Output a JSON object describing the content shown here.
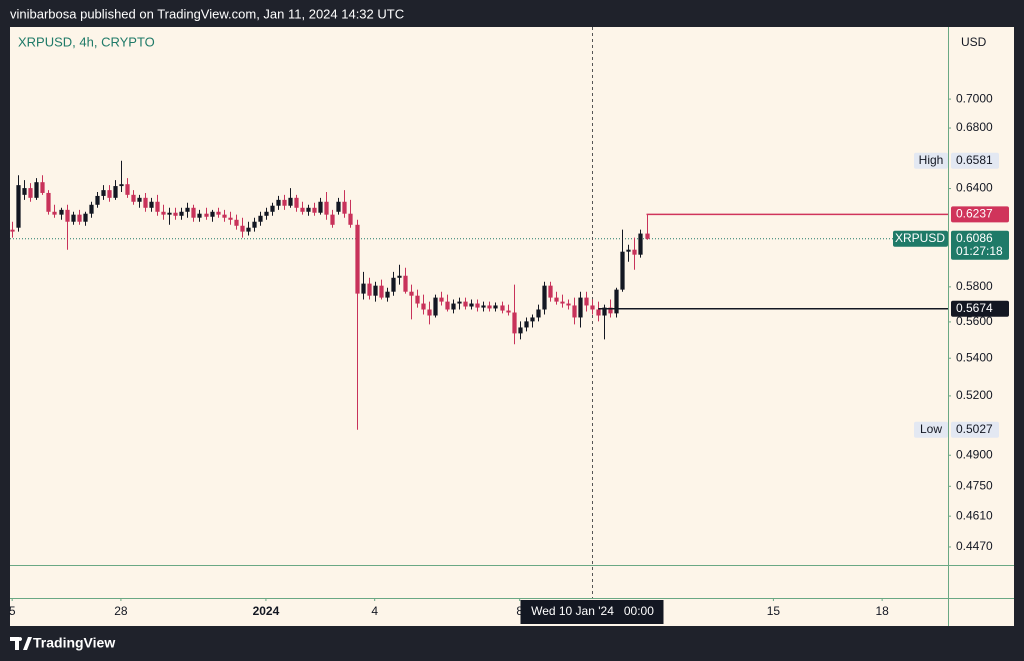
{
  "header": "vinibarbosa published on TradingView.com, Jan 11, 2024 14:32 UTC",
  "footer": "TradingView",
  "chart_data": {
    "type": "candlestick",
    "title": "XRPUSD, 4h, CRYPTO",
    "currency": "USD",
    "up_color": "#131722",
    "down_color": "#c8325a",
    "log_scale": true,
    "grid": false,
    "open": [
      0.6142,
      0.6154,
      0.636,
      0.6403,
      0.6341,
      0.6441,
      0.6372,
      0.6253,
      0.6235,
      0.6265,
      0.6191,
      0.6235,
      0.6191,
      0.6241,
      0.6297,
      0.6353,
      0.639,
      0.6341,
      0.6416,
      0.6428,
      0.636,
      0.6316,
      0.6341,
      0.6278,
      0.6316,
      0.6253,
      0.6235,
      0.6247,
      0.6228,
      0.6253,
      0.6278,
      0.6216,
      0.6241,
      0.6222,
      0.6253,
      0.6235,
      0.6216,
      0.6203,
      0.6166,
      0.613,
      0.6154,
      0.6191,
      0.6228,
      0.6253,
      0.6291,
      0.6328,
      0.6291,
      0.6341,
      0.6278,
      0.6253,
      0.6278,
      0.6247,
      0.6316,
      0.6235,
      0.6253,
      0.6316,
      0.6241,
      0.6172,
      0.5761,
      0.5819,
      0.5749,
      0.5807,
      0.5738,
      0.5772,
      0.5853,
      0.5865,
      0.5772,
      0.5749,
      0.5704,
      0.567,
      0.5636,
      0.5738,
      0.5715,
      0.567,
      0.5704,
      0.5715,
      0.5687,
      0.5704,
      0.5681,
      0.5693,
      0.5676,
      0.5693,
      0.5664,
      0.5653,
      0.5536,
      0.5569,
      0.5603,
      0.5625,
      0.567,
      0.5807,
      0.5738,
      0.5715,
      0.5704,
      0.5693,
      0.5625,
      0.5738,
      0.5693,
      0.567,
      0.5636,
      0.5681,
      0.5648,
      0.5784,
      0.6008,
      0.602,
      0.599,
      0.6118
    ],
    "high": [
      0.6191,
      0.6486,
      0.6454,
      0.6435,
      0.6467,
      0.6486,
      0.639,
      0.6297,
      0.6278,
      0.6297,
      0.6253,
      0.6265,
      0.6253,
      0.6316,
      0.6378,
      0.6422,
      0.6422,
      0.6454,
      0.6581,
      0.6467,
      0.639,
      0.636,
      0.6372,
      0.6341,
      0.636,
      0.6297,
      0.6278,
      0.6278,
      0.6278,
      0.631,
      0.6297,
      0.6265,
      0.6278,
      0.6265,
      0.6278,
      0.6265,
      0.6253,
      0.6235,
      0.6216,
      0.6191,
      0.6216,
      0.6253,
      0.6278,
      0.631,
      0.6353,
      0.636,
      0.6403,
      0.636,
      0.6316,
      0.6297,
      0.631,
      0.6341,
      0.6378,
      0.6265,
      0.6341,
      0.639,
      0.6328,
      0.6203,
      0.5888,
      0.5853,
      0.583,
      0.5842,
      0.5795,
      0.5888,
      0.593,
      0.5912,
      0.5813,
      0.5784,
      0.5755,
      0.5715,
      0.5755,
      0.5772,
      0.5755,
      0.5727,
      0.5738,
      0.5738,
      0.5727,
      0.5727,
      0.5715,
      0.5715,
      0.571,
      0.5715,
      0.5698,
      0.5813,
      0.5603,
      0.5625,
      0.5642,
      0.5698,
      0.583,
      0.583,
      0.5772,
      0.5755,
      0.5727,
      0.5738,
      0.5772,
      0.5772,
      0.5727,
      0.5715,
      0.5698,
      0.5727,
      0.5795,
      0.6142,
      0.605,
      0.6093,
      0.6142,
      0.6237
    ],
    "low": [
      0.6093,
      0.613,
      0.6328,
      0.6316,
      0.6328,
      0.636,
      0.6235,
      0.6216,
      0.6203,
      0.602,
      0.6172,
      0.6172,
      0.6166,
      0.6216,
      0.6278,
      0.6328,
      0.6316,
      0.6328,
      0.6378,
      0.6341,
      0.6297,
      0.6278,
      0.6253,
      0.6253,
      0.6228,
      0.6203,
      0.6172,
      0.6203,
      0.6203,
      0.6216,
      0.6191,
      0.6191,
      0.6203,
      0.6191,
      0.6216,
      0.6191,
      0.6172,
      0.6142,
      0.6093,
      0.6106,
      0.613,
      0.6166,
      0.6203,
      0.6228,
      0.6265,
      0.6265,
      0.6278,
      0.6253,
      0.6235,
      0.6228,
      0.6228,
      0.6235,
      0.6203,
      0.6154,
      0.6235,
      0.6216,
      0.6154,
      0.5027,
      0.5727,
      0.5727,
      0.5715,
      0.5727,
      0.5715,
      0.5749,
      0.5813,
      0.5761,
      0.5614,
      0.5681,
      0.5642,
      0.5586,
      0.5625,
      0.5693,
      0.5659,
      0.5648,
      0.567,
      0.567,
      0.567,
      0.5659,
      0.5659,
      0.5659,
      0.5659,
      0.5648,
      0.5636,
      0.5476,
      0.5503,
      0.5547,
      0.5569,
      0.5603,
      0.5642,
      0.5715,
      0.5698,
      0.5681,
      0.567,
      0.5586,
      0.5569,
      0.5659,
      0.5642,
      0.5603,
      0.5503,
      0.5625,
      0.5625,
      0.5772,
      0.5948,
      0.59,
      0.5972,
      0.608
    ],
    "close": [
      0.613,
      0.6422,
      0.6403,
      0.6341,
      0.6441,
      0.6372,
      0.6253,
      0.6235,
      0.6265,
      0.6191,
      0.6235,
      0.6191,
      0.6241,
      0.6297,
      0.6353,
      0.639,
      0.6341,
      0.6416,
      0.6428,
      0.636,
      0.6316,
      0.6341,
      0.6278,
      0.6316,
      0.6253,
      0.6235,
      0.6247,
      0.6228,
      0.6253,
      0.6278,
      0.6216,
      0.6241,
      0.6222,
      0.6253,
      0.6235,
      0.6216,
      0.6203,
      0.6166,
      0.613,
      0.6154,
      0.6191,
      0.6228,
      0.6253,
      0.6291,
      0.6328,
      0.6291,
      0.6341,
      0.6278,
      0.6253,
      0.6278,
      0.6247,
      0.6316,
      0.6235,
      0.6172,
      0.6316,
      0.6241,
      0.6172,
      0.5761,
      0.5819,
      0.5749,
      0.5807,
      0.5738,
      0.5772,
      0.5853,
      0.5865,
      0.5772,
      0.5749,
      0.5704,
      0.567,
      0.5636,
      0.5738,
      0.5715,
      0.567,
      0.5704,
      0.5715,
      0.5687,
      0.5704,
      0.5681,
      0.5693,
      0.5676,
      0.5693,
      0.5664,
      0.5653,
      0.5536,
      0.5569,
      0.5603,
      0.5625,
      0.567,
      0.5807,
      0.5738,
      0.5715,
      0.5704,
      0.5693,
      0.5625,
      0.5738,
      0.5693,
      0.567,
      0.5636,
      0.5681,
      0.5648,
      0.5784,
      0.6008,
      0.602,
      0.599,
      0.6118,
      0.6086
    ],
    "xlim": [
      -0.36,
      154.9
    ],
    "xticks": [
      {
        "value": 0,
        "label": "5"
      },
      {
        "value": 18,
        "label": "28"
      },
      {
        "value": 42,
        "label": "2024"
      },
      {
        "value": 60,
        "label": "4"
      },
      {
        "value": 84,
        "label": "8"
      },
      {
        "value": 126,
        "label": "15"
      },
      {
        "value": 144,
        "label": "18"
      }
    ],
    "ylim": [
      0.439,
      0.7524
    ],
    "yticks": [
      {
        "value": 0.7,
        "label": "0.7000"
      },
      {
        "value": 0.68,
        "label": "0.6800"
      },
      {
        "value": 0.64,
        "label": "0.6400"
      },
      {
        "value": 0.58,
        "label": "0.5800"
      },
      {
        "value": 0.56,
        "label": "0.5600"
      },
      {
        "value": 0.54,
        "label": "0.5400"
      },
      {
        "value": 0.52,
        "label": "0.5200"
      },
      {
        "value": 0.49,
        "label": "0.4900"
      },
      {
        "value": 0.475,
        "label": "0.4750"
      },
      {
        "value": 0.461,
        "label": "0.4610"
      },
      {
        "value": 0.447,
        "label": "0.4470"
      }
    ],
    "high_marker": {
      "label": "High",
      "value": 0.6581
    },
    "low_marker": {
      "label": "Low",
      "value": 0.5027
    },
    "price_lines": [
      {
        "value": 0.6237,
        "color": "#d0345b",
        "x_start": 105
      },
      {
        "value": 0.5674,
        "color": "#131722",
        "x_start": 97
      }
    ],
    "last_price": {
      "symbol": "XRPUSD",
      "value": 0.6086,
      "countdown": "01:27:18",
      "color": "#1f7a68"
    },
    "crosshair": {
      "x": 96,
      "label": "Wed 10 Jan '24   00:00"
    }
  }
}
